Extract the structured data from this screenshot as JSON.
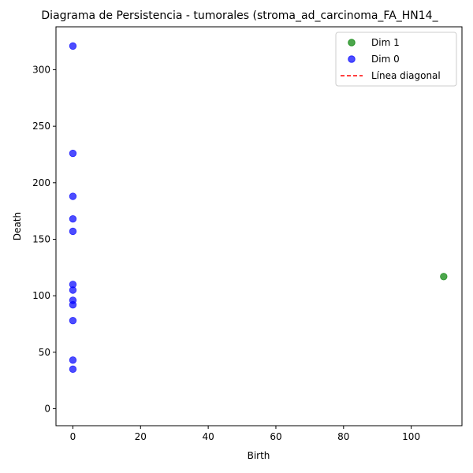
{
  "chart_data": {
    "type": "scatter",
    "title": "Diagrama de Persistencia - tumorales (stroma_ad_carcinoma_FA_HN14_",
    "xlabel": "Birth",
    "ylabel": "Death",
    "xlim": [
      -5,
      115
    ],
    "ylim": [
      -15,
      338
    ],
    "x_ticks": [
      0,
      20,
      40,
      60,
      80,
      100
    ],
    "y_ticks": [
      0,
      50,
      100,
      150,
      200,
      250,
      300
    ],
    "grid": false,
    "legend_position": "top-right",
    "series": [
      {
        "name": "Dim 1",
        "color": "#008000",
        "points": [
          {
            "x": 109.6,
            "y": 117
          }
        ]
      },
      {
        "name": "Dim 0",
        "color": "#0000ff",
        "points": [
          {
            "x": 0,
            "y": 321
          },
          {
            "x": 0,
            "y": 226
          },
          {
            "x": 0,
            "y": 188
          },
          {
            "x": 0,
            "y": 168
          },
          {
            "x": 0,
            "y": 157
          },
          {
            "x": 0,
            "y": 110
          },
          {
            "x": 0,
            "y": 105
          },
          {
            "x": 0,
            "y": 96
          },
          {
            "x": 0,
            "y": 92
          },
          {
            "x": 0,
            "y": 78
          },
          {
            "x": 0,
            "y": 43
          },
          {
            "x": 0,
            "y": 35
          }
        ]
      },
      {
        "name": "Línea diagonal",
        "color": "#ff0000",
        "style": "dashed",
        "points": []
      }
    ]
  }
}
